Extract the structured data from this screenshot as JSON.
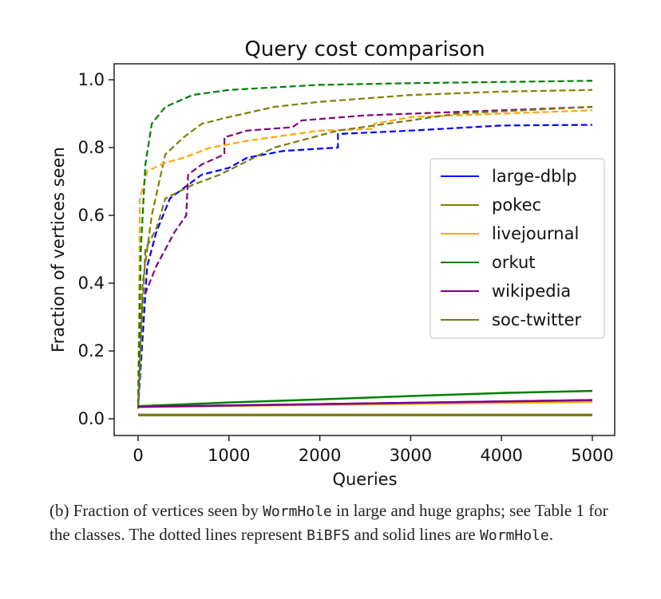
{
  "chart_data": {
    "type": "line",
    "title": "Query cost comparison",
    "xlabel": "Queries",
    "ylabel": "Fraction of vertices seen",
    "xlim": [
      0,
      5000
    ],
    "ylim": [
      0,
      1.0
    ],
    "xticks": [
      0,
      1000,
      2000,
      3000,
      4000,
      5000
    ],
    "xtick_labels": [
      "0",
      "1000",
      "2000",
      "3000",
      "4000",
      "5000"
    ],
    "yticks": [
      0,
      0.2,
      0.4,
      0.6,
      0.8,
      1.0
    ],
    "ytick_labels": [
      "0.0",
      "0.2",
      "0.4",
      "0.6",
      "0.8",
      "1.0"
    ],
    "grid": false,
    "legend_position": "center-right",
    "series": [
      {
        "name": "large-dblp",
        "color": "#0000ff",
        "wormhole": [
          [
            0,
            0.035
          ],
          [
            5000,
            0.055
          ]
        ],
        "bibfs": [
          [
            0,
            0.03
          ],
          [
            100,
            0.45
          ],
          [
            200,
            0.55
          ],
          [
            350,
            0.65
          ],
          [
            500,
            0.68
          ],
          [
            700,
            0.72
          ],
          [
            1000,
            0.74
          ],
          [
            1200,
            0.77
          ],
          [
            1600,
            0.79
          ],
          [
            2200,
            0.8
          ],
          [
            2200,
            0.84
          ],
          [
            3000,
            0.85
          ],
          [
            4000,
            0.865
          ],
          [
            5000,
            0.867
          ]
        ]
      },
      {
        "name": "pokec",
        "color": "#808000",
        "wormhole": [
          [
            0,
            0.01
          ],
          [
            5000,
            0.01
          ]
        ],
        "bibfs": [
          [
            0,
            0.04
          ],
          [
            50,
            0.4
          ],
          [
            150,
            0.6
          ],
          [
            300,
            0.78
          ],
          [
            500,
            0.83
          ],
          [
            700,
            0.87
          ],
          [
            1000,
            0.89
          ],
          [
            1500,
            0.92
          ],
          [
            2000,
            0.935
          ],
          [
            3000,
            0.955
          ],
          [
            4000,
            0.965
          ],
          [
            5000,
            0.97
          ]
        ]
      },
      {
        "name": "livejournal",
        "color": "#ffa500",
        "wormhole": [
          [
            0,
            0.035
          ],
          [
            5000,
            0.05
          ]
        ],
        "bibfs": [
          [
            0,
            0.04
          ],
          [
            20,
            0.65
          ],
          [
            100,
            0.73
          ],
          [
            300,
            0.755
          ],
          [
            500,
            0.77
          ],
          [
            800,
            0.8
          ],
          [
            1200,
            0.82
          ],
          [
            2000,
            0.85
          ],
          [
            2600,
            0.855
          ],
          [
            2600,
            0.87
          ],
          [
            3000,
            0.89
          ],
          [
            4000,
            0.9
          ],
          [
            5000,
            0.91
          ]
        ]
      },
      {
        "name": "orkut",
        "color": "#008000",
        "wormhole": [
          [
            0,
            0.037
          ],
          [
            1000,
            0.048
          ],
          [
            2000,
            0.057
          ],
          [
            3000,
            0.067
          ],
          [
            4000,
            0.076
          ],
          [
            5000,
            0.082
          ]
        ],
        "bibfs": [
          [
            0,
            0.04
          ],
          [
            30,
            0.5
          ],
          [
            80,
            0.75
          ],
          [
            150,
            0.87
          ],
          [
            300,
            0.92
          ],
          [
            600,
            0.955
          ],
          [
            1000,
            0.97
          ],
          [
            2000,
            0.985
          ],
          [
            3000,
            0.99
          ],
          [
            5000,
            0.997
          ]
        ]
      },
      {
        "name": "wikipedia",
        "color": "#800080",
        "wormhole": [
          [
            0,
            0.035
          ],
          [
            5000,
            0.055
          ]
        ],
        "bibfs": [
          [
            0,
            0.03
          ],
          [
            50,
            0.35
          ],
          [
            200,
            0.45
          ],
          [
            400,
            0.55
          ],
          [
            530,
            0.6
          ],
          [
            550,
            0.72
          ],
          [
            700,
            0.75
          ],
          [
            950,
            0.78
          ],
          [
            950,
            0.83
          ],
          [
            1200,
            0.85
          ],
          [
            1700,
            0.86
          ],
          [
            1800,
            0.88
          ],
          [
            2500,
            0.895
          ],
          [
            3500,
            0.905
          ],
          [
            5000,
            0.92
          ]
        ]
      },
      {
        "name": "soc-twitter",
        "color": "#7a7a10",
        "wormhole": [
          [
            0,
            0.012
          ],
          [
            5000,
            0.012
          ]
        ],
        "bibfs": [
          [
            0,
            0.03
          ],
          [
            80,
            0.5
          ],
          [
            200,
            0.56
          ],
          [
            300,
            0.65
          ],
          [
            600,
            0.69
          ],
          [
            900,
            0.72
          ],
          [
            1500,
            0.8
          ],
          [
            2200,
            0.85
          ],
          [
            3000,
            0.88
          ],
          [
            3500,
            0.9
          ],
          [
            5000,
            0.92
          ]
        ]
      }
    ]
  },
  "caption": {
    "part1": "(b)  Fraction of vertices seen by ",
    "code1": "WormHole",
    "part2": " in large and huge graphs; see Table 1 for the classes. The dotted lines represent ",
    "code2": "BiBFS",
    "part3": " and solid lines are ",
    "code3": "WormHole",
    "part4": "."
  }
}
